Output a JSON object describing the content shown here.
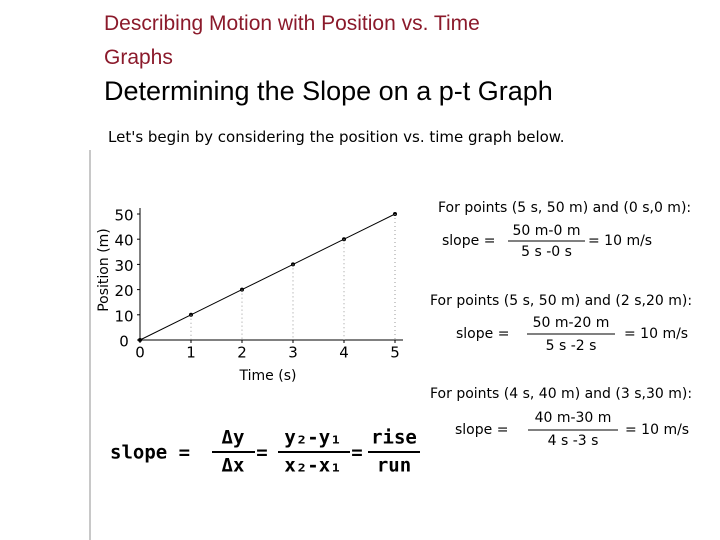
{
  "header": {
    "title": "Describing Motion with Position vs. Time Graphs",
    "subtitle": "Determining the Slope on a p-t Graph",
    "intro": "Let's begin by considering the position vs. time graph below."
  },
  "graph": {
    "type": "line",
    "x_label": "Time (s)",
    "y_label": "Position (m)",
    "x": [
      0,
      1,
      2,
      3,
      4,
      5
    ],
    "values": [
      0,
      10,
      20,
      30,
      40,
      50
    ],
    "xlim": [
      0,
      5
    ],
    "ylim": [
      0,
      50
    ],
    "xticks": [
      0,
      1,
      2,
      3,
      4,
      5
    ],
    "yticks": [
      0,
      10,
      20,
      30,
      40,
      50
    ],
    "color": "#000000"
  },
  "formula": {
    "label": "slope =",
    "num1": "Δy",
    "den1": "Δx",
    "eq1": "=",
    "num2": "y₂-y₁",
    "den2": "x₂-x₁",
    "eq2": "=",
    "num3": "rise",
    "den3": "run"
  },
  "examples": [
    {
      "heading": "For points (5 s, 50 m) and (0 s,0 m):",
      "label": "slope =",
      "numerator": "50 m-0 m",
      "denominator": "5 s -0 s",
      "result": "= 10 m/s"
    },
    {
      "heading": "For points (5 s, 50 m) and (2 s,20 m):",
      "label": "slope =",
      "numerator": "50 m-20 m",
      "denominator": "5 s -2 s",
      "result": "= 10 m/s"
    },
    {
      "heading": "For points (4 s, 40 m) and (3 s,30 m):",
      "label": "slope =",
      "numerator": "40 m-30 m",
      "denominator": "4 s -3 s",
      "result": "= 10 m/s"
    }
  ]
}
